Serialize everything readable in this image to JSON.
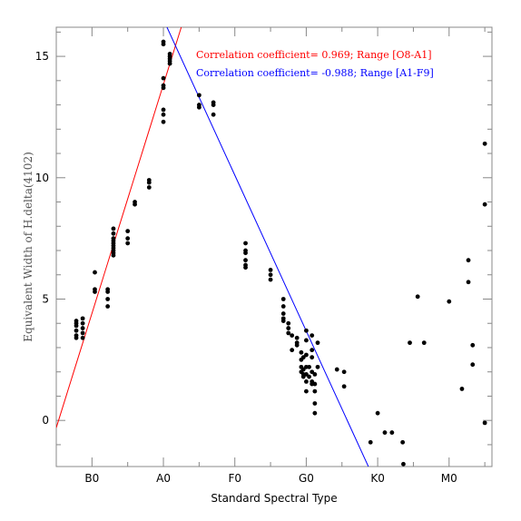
{
  "chart_data": {
    "type": "scatter",
    "xlabel": "Standard Spectral Type",
    "ylabel": "Equivalent Width of H.delta(4102)",
    "x_ticks": [
      {
        "pos": 0,
        "label": "B0"
      },
      {
        "pos": 10,
        "label": "A0"
      },
      {
        "pos": 20,
        "label": "F0"
      },
      {
        "pos": 30,
        "label": "G0"
      },
      {
        "pos": 40,
        "label": "K0"
      },
      {
        "pos": 50,
        "label": "M0"
      }
    ],
    "xlim": [
      -5,
      56
    ],
    "ylim": [
      -1.9,
      16.2
    ],
    "y_ticks": [
      0,
      5,
      10,
      15
    ],
    "annotations": [
      {
        "text": "Correlation coefficient= 0.969; Range [O8-A1]",
        "color": "#ff0000"
      },
      {
        "text": "Correlation coefficient= -0.988; Range [A1-F9]",
        "color": "#0000ff"
      }
    ],
    "lines": [
      {
        "color": "#ff0000",
        "x": [
          -5,
          12.5
        ],
        "y": [
          -0.3,
          16.2
        ]
      },
      {
        "color": "#0000ff",
        "x": [
          10.5,
          38.7
        ],
        "y": [
          16.2,
          -1.9
        ]
      }
    ],
    "points": [
      [
        -2.2,
        4.1
      ],
      [
        -2.2,
        4.0
      ],
      [
        -2.2,
        3.9
      ],
      [
        -2.2,
        3.7
      ],
      [
        -2.2,
        3.5
      ],
      [
        -2.2,
        3.4
      ],
      [
        -1.3,
        4.2
      ],
      [
        -1.3,
        4.0
      ],
      [
        -1.3,
        3.8
      ],
      [
        -1.3,
        3.6
      ],
      [
        -1.3,
        3.4
      ],
      [
        0.4,
        6.1
      ],
      [
        0.4,
        5.4
      ],
      [
        0.4,
        5.3
      ],
      [
        2.2,
        5.4
      ],
      [
        2.2,
        5.3
      ],
      [
        2.2,
        5.0
      ],
      [
        2.2,
        4.7
      ],
      [
        3.0,
        7.9
      ],
      [
        3.0,
        7.7
      ],
      [
        3.0,
        7.5
      ],
      [
        3.0,
        7.4
      ],
      [
        3.0,
        7.3
      ],
      [
        3.0,
        7.2
      ],
      [
        3.0,
        7.1
      ],
      [
        3.0,
        7.0
      ],
      [
        3.0,
        6.9
      ],
      [
        3.0,
        6.8
      ],
      [
        5.0,
        7.8
      ],
      [
        5.0,
        7.5
      ],
      [
        5.0,
        7.3
      ],
      [
        6.0,
        9.0
      ],
      [
        6.0,
        8.9
      ],
      [
        8.0,
        9.9
      ],
      [
        8.0,
        9.8
      ],
      [
        8.0,
        9.6
      ],
      [
        10.0,
        15.6
      ],
      [
        10.0,
        15.5
      ],
      [
        10.0,
        14.1
      ],
      [
        10.0,
        13.8
      ],
      [
        10.0,
        13.7
      ],
      [
        10.0,
        12.8
      ],
      [
        10.0,
        12.6
      ],
      [
        10.0,
        12.3
      ],
      [
        10.9,
        15.1
      ],
      [
        10.9,
        15.0
      ],
      [
        10.9,
        14.9
      ],
      [
        10.9,
        14.8
      ],
      [
        10.9,
        14.7
      ],
      [
        15.0,
        13.4
      ],
      [
        15.0,
        13.0
      ],
      [
        15.0,
        12.9
      ],
      [
        17.0,
        13.1
      ],
      [
        17.0,
        13.0
      ],
      [
        17.0,
        12.6
      ],
      [
        21.5,
        7.3
      ],
      [
        21.5,
        7.0
      ],
      [
        21.5,
        6.9
      ],
      [
        21.5,
        6.6
      ],
      [
        21.5,
        6.4
      ],
      [
        21.5,
        6.3
      ],
      [
        25.0,
        6.2
      ],
      [
        25.0,
        6.0
      ],
      [
        25.0,
        5.8
      ],
      [
        26.8,
        5.0
      ],
      [
        26.8,
        4.7
      ],
      [
        26.8,
        4.4
      ],
      [
        26.8,
        4.2
      ],
      [
        26.8,
        4.1
      ],
      [
        27.5,
        4.0
      ],
      [
        27.5,
        3.8
      ],
      [
        27.5,
        3.6
      ],
      [
        28.0,
        3.5
      ],
      [
        28.0,
        2.9
      ],
      [
        28.7,
        3.4
      ],
      [
        28.7,
        3.2
      ],
      [
        28.7,
        3.1
      ],
      [
        29.3,
        2.8
      ],
      [
        29.3,
        2.5
      ],
      [
        29.3,
        2.2
      ],
      [
        29.3,
        2.0
      ],
      [
        29.6,
        2.6
      ],
      [
        29.6,
        2.1
      ],
      [
        29.6,
        1.9
      ],
      [
        29.6,
        1.8
      ],
      [
        30.0,
        3.7
      ],
      [
        30.0,
        3.3
      ],
      [
        30.0,
        2.7
      ],
      [
        30.0,
        2.2
      ],
      [
        30.0,
        1.9
      ],
      [
        30.0,
        1.6
      ],
      [
        30.0,
        1.2
      ],
      [
        30.4,
        2.2
      ],
      [
        30.4,
        1.8
      ],
      [
        30.8,
        3.5
      ],
      [
        30.8,
        2.9
      ],
      [
        30.8,
        2.6
      ],
      [
        30.8,
        2.0
      ],
      [
        30.8,
        1.6
      ],
      [
        30.8,
        1.5
      ],
      [
        31.2,
        1.9
      ],
      [
        31.2,
        1.5
      ],
      [
        31.2,
        1.2
      ],
      [
        31.2,
        0.7
      ],
      [
        31.2,
        0.3
      ],
      [
        31.6,
        3.2
      ],
      [
        31.6,
        2.2
      ],
      [
        34.3,
        2.1
      ],
      [
        35.3,
        2.0
      ],
      [
        35.3,
        1.4
      ],
      [
        39.0,
        -0.9
      ],
      [
        40.0,
        0.3
      ],
      [
        41.0,
        -0.5
      ],
      [
        42.0,
        -0.5
      ],
      [
        43.5,
        -0.9
      ],
      [
        43.6,
        -1.8
      ],
      [
        44.5,
        3.2
      ],
      [
        45.6,
        5.1
      ],
      [
        46.5,
        3.2
      ],
      [
        50.0,
        4.9
      ],
      [
        51.8,
        1.3
      ],
      [
        52.7,
        6.6
      ],
      [
        52.7,
        5.7
      ],
      [
        53.3,
        3.1
      ],
      [
        53.3,
        2.3
      ],
      [
        55.0,
        11.4
      ],
      [
        55.0,
        8.9
      ],
      [
        55.0,
        -0.1
      ]
    ]
  }
}
